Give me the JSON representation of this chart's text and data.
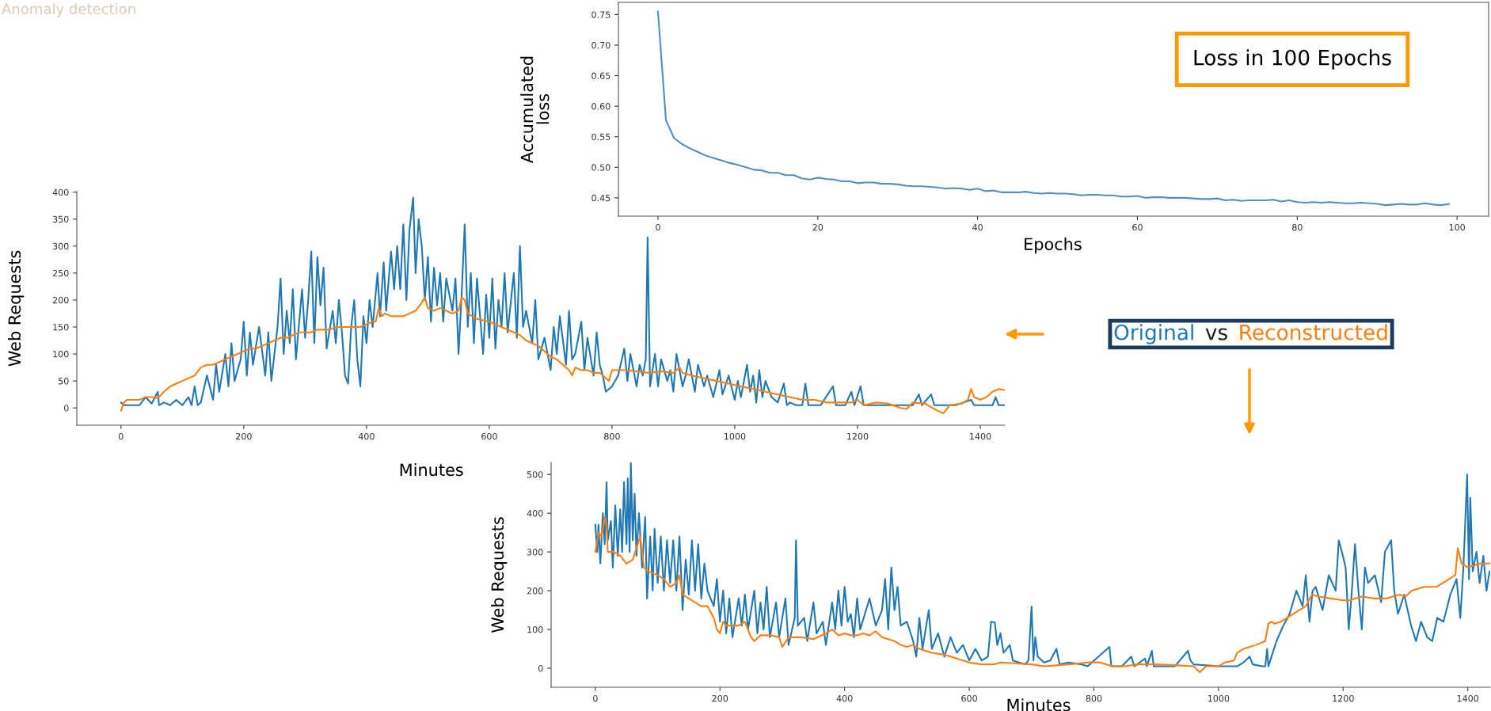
{
  "chart_data": [
    {
      "type": "line",
      "title": "Loss in 100 Epochs",
      "xlabel": "Epochs",
      "ylabel": "Accumulated\nloss",
      "annotations": [
        "Anomaly detection"
      ],
      "xlim": [
        -4.95,
        103.95
      ],
      "ylim": [
        0.42,
        0.77
      ],
      "xticks": [
        0,
        20,
        40,
        60,
        80,
        100
      ],
      "yticks": [
        0.45,
        {
          "value": 0.5,
          "label": "0.50"
        },
        0.55,
        {
          "value": 0.6,
          "label": "0.60"
        },
        0.65,
        {
          "value": 0.7,
          "label": "0.70"
        },
        0.75
      ],
      "x": [
        0,
        1,
        2,
        3,
        4,
        5,
        6,
        7,
        8,
        9,
        10,
        11,
        12,
        13,
        14,
        15,
        16,
        17,
        18,
        19,
        20,
        21,
        22,
        23,
        24,
        25,
        26,
        27,
        28,
        29,
        30,
        31,
        32,
        33,
        34,
        35,
        36,
        37,
        38,
        39,
        40,
        41,
        42,
        43,
        44,
        45,
        46,
        47,
        48,
        49,
        50,
        51,
        52,
        53,
        54,
        55,
        56,
        57,
        58,
        59,
        60,
        61,
        62,
        63,
        64,
        65,
        66,
        67,
        68,
        69,
        70,
        71,
        72,
        73,
        74,
        75,
        76,
        77,
        78,
        79,
        80,
        81,
        82,
        83,
        84,
        85,
        86,
        87,
        88,
        89,
        90,
        91,
        92,
        93,
        94,
        95,
        96,
        97,
        98,
        99
      ],
      "series": [
        {
          "color": "#4f8fc4",
          "values": [
            0.755,
            0.577,
            0.548,
            0.538,
            0.531,
            0.525,
            0.519,
            0.515,
            0.511,
            0.507,
            0.504,
            0.5,
            0.496,
            0.495,
            0.491,
            0.491,
            0.487,
            0.487,
            0.482,
            0.48,
            0.483,
            0.481,
            0.48,
            0.477,
            0.477,
            0.474,
            0.475,
            0.475,
            0.473,
            0.473,
            0.472,
            0.47,
            0.469,
            0.469,
            0.468,
            0.467,
            0.465,
            0.466,
            0.465,
            0.463,
            0.465,
            0.461,
            0.462,
            0.459,
            0.459,
            0.459,
            0.46,
            0.458,
            0.457,
            0.458,
            0.457,
            0.457,
            0.456,
            0.454,
            0.455,
            0.455,
            0.454,
            0.454,
            0.452,
            0.452,
            0.453,
            0.45,
            0.451,
            0.451,
            0.45,
            0.45,
            0.45,
            0.449,
            0.448,
            0.448,
            0.449,
            0.446,
            0.447,
            0.445,
            0.446,
            0.446,
            0.446,
            0.447,
            0.444,
            0.446,
            0.443,
            0.442,
            0.443,
            0.442,
            0.443,
            0.442,
            0.441,
            0.441,
            0.442,
            0.441,
            0.44,
            0.438,
            0.439,
            0.44,
            0.439,
            0.439,
            0.441,
            0.439,
            0.438,
            0.44
          ]
        }
      ]
    },
    {
      "type": "line",
      "xlabel": "Minutes",
      "ylabel": "Web Requests",
      "annotations": [
        "Original vs Reconstructed"
      ],
      "xlim": [
        -72,
        1440
      ],
      "ylim": [
        -32,
        401
      ],
      "xticks": [
        0,
        200,
        400,
        600,
        800,
        1000,
        1200,
        1400
      ],
      "yticks": [
        0,
        50,
        100,
        150,
        200,
        250,
        300,
        350,
        400
      ],
      "series": [
        {
          "color": "#1f77b4",
          "x": [
            0,
            5,
            30,
            40,
            50,
            60,
            62,
            70,
            80,
            90,
            100,
            110,
            115,
            120,
            125,
            130,
            140,
            150,
            155,
            160,
            170,
            175,
            180,
            185,
            195,
            200,
            205,
            210,
            215,
            225,
            235,
            240,
            245,
            255,
            260,
            265,
            270,
            275,
            280,
            285,
            295,
            300,
            305,
            310,
            315,
            320,
            325,
            330,
            335,
            345,
            350,
            355,
            360,
            365,
            370,
            375,
            380,
            385,
            390,
            395,
            400,
            405,
            410,
            418,
            422,
            428,
            432,
            440,
            445,
            450,
            455,
            460,
            465,
            470,
            476,
            480,
            485,
            490,
            495,
            500,
            505,
            510,
            515,
            520,
            525,
            530,
            540,
            545,
            550,
            555,
            560,
            565,
            570,
            575,
            580,
            590,
            595,
            600,
            605,
            610,
            615,
            620,
            625,
            630,
            640,
            645,
            650,
            655,
            660,
            670,
            675,
            680,
            690,
            700,
            705,
            710,
            715,
            725,
            730,
            735,
            740,
            750,
            755,
            760,
            770,
            775,
            780,
            785,
            790,
            800,
            810,
            820,
            825,
            830,
            840,
            845,
            850,
            855,
            858,
            862,
            870,
            875,
            880,
            890,
            895,
            900,
            905,
            915,
            920,
            925,
            935,
            940,
            950,
            955,
            965,
            975,
            980,
            990,
            1000,
            1005,
            1010,
            1020,
            1025,
            1030,
            1035,
            1040,
            1045,
            1050,
            1060,
            1070,
            1080,
            1085,
            1090,
            1100,
            1110,
            1115,
            1120,
            1140,
            1160,
            1165,
            1180,
            1190,
            1195,
            1205,
            1210,
            1220,
            1250,
            1270,
            1290,
            1300,
            1305,
            1320,
            1325,
            1350,
            1360,
            1385,
            1390,
            1420,
            1425,
            1430,
            1440
          ],
          "values": [
            10,
            5,
            5,
            20,
            8,
            30,
            5,
            10,
            5,
            15,
            5,
            20,
            5,
            40,
            5,
            10,
            60,
            15,
            80,
            30,
            100,
            40,
            120,
            50,
            90,
            160,
            60,
            140,
            80,
            150,
            60,
            140,
            50,
            150,
            240,
            100,
            180,
            120,
            220,
            90,
            220,
            130,
            200,
            290,
            120,
            280,
            190,
            260,
            110,
            180,
            120,
            200,
            140,
            60,
            45,
            150,
            200,
            90,
            40,
            170,
            120,
            200,
            150,
            250,
            170,
            270,
            180,
            290,
            220,
            300,
            220,
            340,
            200,
            330,
            390,
            250,
            350,
            300,
            200,
            280,
            160,
            260,
            190,
            250,
            160,
            240,
            180,
            240,
            100,
            210,
            340,
            150,
            250,
            120,
            240,
            100,
            210,
            130,
            240,
            110,
            200,
            150,
            250,
            140,
            250,
            130,
            300,
            150,
            180,
            120,
            200,
            90,
            130,
            70,
            150,
            100,
            170,
            80,
            180,
            90,
            100,
            160,
            70,
            130,
            60,
            140,
            80,
            60,
            30,
            40,
            60,
            110,
            50,
            100,
            40,
            80,
            60,
            90,
            316,
            40,
            100,
            40,
            90,
            50,
            70,
            30,
            100,
            40,
            60,
            90,
            30,
            80,
            40,
            60,
            20,
            70,
            25,
            60,
            15,
            50,
            20,
            80,
            30,
            60,
            10,
            70,
            20,
            50,
            20,
            10,
            45,
            5,
            10,
            5,
            5,
            45,
            5,
            5,
            40,
            5,
            5,
            30,
            5,
            40,
            5,
            5,
            5,
            5,
            5,
            25,
            5,
            25,
            5,
            5,
            5,
            15,
            5,
            5,
            20,
            5,
            5
          ]
        },
        {
          "color": "#ff7f0e",
          "x": [
            0,
            5,
            10,
            20,
            30,
            40,
            50,
            60,
            70,
            80,
            90,
            100,
            110,
            120,
            130,
            140,
            150,
            160,
            170,
            180,
            190,
            200,
            210,
            220,
            230,
            240,
            250,
            260,
            270,
            280,
            290,
            300,
            310,
            320,
            330,
            340,
            350,
            360,
            370,
            380,
            390,
            400,
            410,
            415,
            420,
            425,
            430,
            440,
            450,
            460,
            470,
            480,
            490,
            495,
            500,
            510,
            520,
            530,
            540,
            550,
            555,
            560,
            565,
            580,
            600,
            620,
            640,
            650,
            660,
            670,
            680,
            690,
            700,
            710,
            720,
            730,
            735,
            740,
            750,
            760,
            770,
            780,
            790,
            795,
            800,
            810,
            820,
            840,
            860,
            880,
            900,
            910,
            915,
            930,
            950,
            970,
            990,
            1010,
            1030,
            1050,
            1070,
            1090,
            1110,
            1130,
            1150,
            1170,
            1190,
            1200,
            1210,
            1230,
            1250,
            1270,
            1280,
            1290,
            1310,
            1330,
            1340,
            1350,
            1370,
            1380,
            1385,
            1390,
            1400,
            1410,
            1420,
            1430,
            1440
          ],
          "values": [
            -5,
            10,
            15,
            15,
            15,
            20,
            20,
            18,
            30,
            40,
            45,
            50,
            55,
            60,
            75,
            80,
            80,
            85,
            90,
            95,
            100,
            105,
            110,
            110,
            115,
            120,
            125,
            130,
            130,
            135,
            140,
            140,
            140,
            145,
            145,
            145,
            150,
            150,
            150,
            150,
            150,
            155,
            160,
            160,
            185,
            170,
            175,
            170,
            170,
            170,
            175,
            180,
            195,
            205,
            185,
            180,
            185,
            180,
            175,
            180,
            205,
            200,
            175,
            165,
            160,
            150,
            140,
            135,
            125,
            120,
            115,
            105,
            95,
            90,
            80,
            70,
            60,
            75,
            70,
            70,
            65,
            65,
            55,
            50,
            70,
            70,
            70,
            68,
            65,
            68,
            65,
            75,
            65,
            60,
            55,
            50,
            45,
            40,
            35,
            30,
            25,
            20,
            15,
            15,
            10,
            10,
            10,
            15,
            5,
            10,
            8,
            0,
            -2,
            10,
            8,
            -5,
            -10,
            5,
            8,
            15,
            35,
            20,
            15,
            20,
            30,
            35,
            33
          ]
        }
      ]
    },
    {
      "type": "line",
      "xlabel": "Minutes",
      "ylabel": "Web Requests",
      "xlim": [
        -71,
        1436
      ],
      "ylim": [
        -49,
        531
      ],
      "xticks": [
        0,
        200,
        400,
        600,
        800,
        1000,
        1200,
        1400
      ],
      "yticks": [
        0,
        100,
        200,
        300,
        400,
        500
      ],
      "series": [
        {
          "color": "#1f77b4",
          "x": [
            0,
            3,
            5,
            8,
            12,
            15,
            18,
            20,
            25,
            28,
            32,
            36,
            40,
            43,
            46,
            50,
            52,
            55,
            57,
            60,
            63,
            66,
            70,
            75,
            80,
            83,
            88,
            92,
            95,
            100,
            105,
            110,
            115,
            120,
            125,
            130,
            135,
            140,
            145,
            150,
            155,
            160,
            165,
            170,
            175,
            180,
            190,
            195,
            200,
            205,
            210,
            215,
            220,
            230,
            235,
            240,
            245,
            255,
            260,
            265,
            270,
            275,
            280,
            290,
            295,
            305,
            310,
            320,
            322,
            325,
            335,
            340,
            350,
            355,
            365,
            370,
            380,
            385,
            390,
            395,
            400,
            405,
            410,
            415,
            420,
            425,
            440,
            450,
            460,
            465,
            470,
            475,
            480,
            485,
            490,
            500,
            510,
            515,
            520,
            525,
            535,
            540,
            550,
            560,
            570,
            580,
            590,
            600,
            610,
            620,
            630,
            635,
            641,
            645,
            650,
            655,
            665,
            670,
            680,
            690,
            695,
            700,
            703,
            706,
            710,
            720,
            730,
            740,
            745,
            760,
            780,
            790,
            825,
            828,
            845,
            860,
            865,
            882,
            885,
            893,
            896,
            930,
            951,
            955,
            960,
            1000,
            1030,
            1040,
            1050,
            1055,
            1070,
            1075,
            1078,
            1080,
            1093,
            1104,
            1114,
            1125,
            1135,
            1140,
            1146,
            1151,
            1156,
            1167,
            1177,
            1188,
            1193,
            1198,
            1204,
            1209,
            1214,
            1219,
            1225,
            1230,
            1235,
            1240,
            1251,
            1261,
            1267,
            1277,
            1282,
            1288,
            1298,
            1309,
            1317,
            1325,
            1335,
            1343,
            1351,
            1361,
            1372,
            1382,
            1388,
            1393,
            1399,
            1402,
            1404,
            1408,
            1414,
            1419,
            1425,
            1430,
            1435
          ],
          "values": [
            370,
            300,
            370,
            270,
            400,
            320,
            480,
            330,
            380,
            260,
            420,
            290,
            410,
            300,
            480,
            320,
            490,
            300,
            530,
            330,
            450,
            290,
            400,
            260,
            390,
            180,
            340,
            200,
            360,
            220,
            340,
            200,
            330,
            220,
            330,
            200,
            340,
            150,
            280,
            190,
            330,
            200,
            320,
            180,
            270,
            200,
            160,
            230,
            120,
            200,
            90,
            180,
            80,
            180,
            110,
            190,
            100,
            200,
            90,
            170,
            100,
            210,
            80,
            170,
            80,
            180,
            60,
            130,
            330,
            110,
            130,
            70,
            170,
            90,
            120,
            60,
            170,
            100,
            200,
            110,
            210,
            120,
            140,
            80,
            180,
            100,
            180,
            110,
            150,
            230,
            100,
            260,
            150,
            210,
            110,
            120,
            70,
            30,
            130,
            50,
            150,
            50,
            90,
            30,
            80,
            40,
            60,
            20,
            50,
            20,
            30,
            120,
            118,
            60,
            90,
            40,
            60,
            20,
            15,
            10,
            20,
            159,
            20,
            80,
            30,
            15,
            20,
            50,
            10,
            15,
            10,
            5,
            55,
            5,
            5,
            30,
            5,
            25,
            5,
            45,
            5,
            5,
            45,
            20,
            10,
            5,
            5,
            15,
            30,
            10,
            5,
            5,
            50,
            5,
            70,
            110,
            140,
            200,
            160,
            240,
            120,
            200,
            210,
            150,
            240,
            200,
            330,
            300,
            260,
            100,
            200,
            320,
            190,
            100,
            260,
            220,
            240,
            170,
            300,
            330,
            200,
            140,
            190,
            110,
            70,
            120,
            80,
            70,
            130,
            120,
            190,
            230,
            130,
            260,
            500,
            230,
            440,
            250,
            300,
            220,
            290,
            200,
            250
          ]
        },
        {
          "color": "#ff7f0e",
          "x": [
            0,
            5,
            10,
            15,
            18,
            20,
            30,
            40,
            50,
            60,
            68,
            72,
            78,
            85,
            100,
            110,
            120,
            130,
            135,
            140,
            150,
            160,
            170,
            180,
            190,
            195,
            200,
            205,
            210,
            220,
            230,
            240,
            245,
            250,
            255,
            265,
            280,
            295,
            300,
            310,
            330,
            350,
            370,
            380,
            390,
            400,
            410,
            420,
            430,
            440,
            450,
            460,
            470,
            480,
            490,
            500,
            510,
            520,
            540,
            560,
            580,
            600,
            620,
            640,
            650,
            700,
            720,
            760,
            790,
            810,
            830,
            850,
            870,
            900,
            930,
            960,
            970,
            980,
            1000,
            1010,
            1025,
            1030,
            1040,
            1060,
            1075,
            1080,
            1085,
            1090,
            1100,
            1120,
            1140,
            1150,
            1160,
            1180,
            1200,
            1210,
            1230,
            1250,
            1270,
            1290,
            1300,
            1310,
            1330,
            1350,
            1370,
            1380,
            1384,
            1390,
            1400,
            1420,
            1435
          ],
          "values": [
            300,
            350,
            340,
            390,
            370,
            300,
            300,
            290,
            270,
            280,
            320,
            340,
            260,
            250,
            240,
            230,
            210,
            220,
            240,
            190,
            180,
            170,
            160,
            160,
            130,
            100,
            90,
            120,
            110,
            110,
            110,
            120,
            100,
            80,
            70,
            85,
            85,
            80,
            55,
            80,
            80,
            75,
            90,
            100,
            85,
            90,
            85,
            85,
            90,
            85,
            95,
            80,
            75,
            70,
            60,
            55,
            60,
            50,
            40,
            35,
            25,
            15,
            10,
            10,
            15,
            10,
            5,
            10,
            15,
            15,
            5,
            5,
            10,
            10,
            8,
            5,
            -10,
            5,
            5,
            15,
            20,
            40,
            50,
            60,
            70,
            115,
            120,
            115,
            120,
            140,
            160,
            190,
            185,
            180,
            175,
            175,
            185,
            180,
            180,
            190,
            185,
            200,
            210,
            210,
            230,
            240,
            310,
            270,
            260,
            270,
            270
          ]
        }
      ]
    }
  ]
}
